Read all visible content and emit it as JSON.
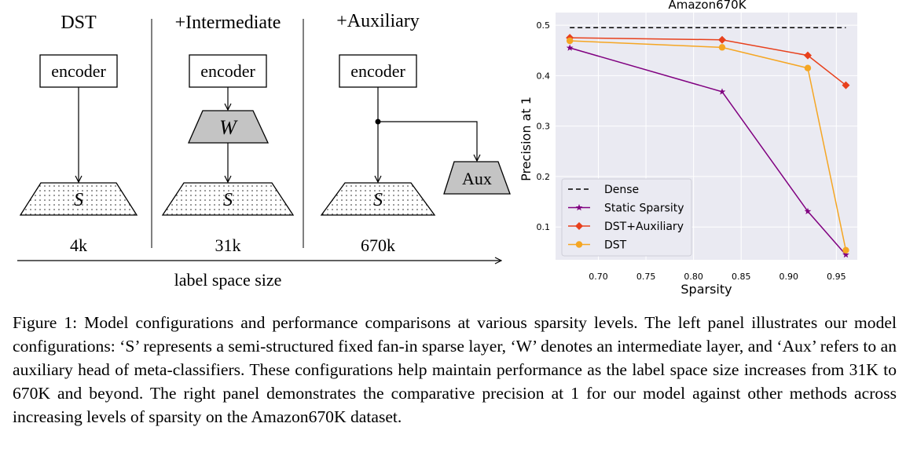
{
  "diagram": {
    "panels": [
      {
        "title": "DST",
        "encoder_label": "encoder",
        "sparse_label": "S",
        "size_label": "4k"
      },
      {
        "title": "+Intermediate",
        "encoder_label": "encoder",
        "intermediate_label": "W",
        "sparse_label": "S",
        "size_label": "31k"
      },
      {
        "title": "+Auxiliary",
        "encoder_label": "encoder",
        "aux_label": "Aux",
        "sparse_label": "S",
        "size_label": "670k"
      }
    ],
    "axis_label": "label space size"
  },
  "chart_data": {
    "type": "line",
    "title": "Amazon670K",
    "xlabel": "Sparsity",
    "ylabel": "Precision at 1",
    "xlim": [
      0.655,
      0.972
    ],
    "ylim": [
      0.035,
      0.525
    ],
    "x_ticks": [
      "0.70",
      "0.75",
      "0.80",
      "0.85",
      "0.90",
      "0.95"
    ],
    "x_tick_values": [
      0.7,
      0.75,
      0.8,
      0.85,
      0.9,
      0.95
    ],
    "y_ticks": [
      "0.1",
      "0.2",
      "0.3",
      "0.4",
      "0.5"
    ],
    "y_tick_values": [
      0.1,
      0.2,
      0.3,
      0.4,
      0.5
    ],
    "legend_position": "lower-left",
    "series": [
      {
        "name": "Dense",
        "color": "#000000",
        "style": "dashed",
        "marker": "none",
        "x": [
          0.67,
          0.96
        ],
        "values": [
          0.495,
          0.495
        ]
      },
      {
        "name": "Static Sparsity",
        "color": "#800080",
        "style": "solid",
        "marker": "star",
        "x": [
          0.67,
          0.83,
          0.92,
          0.96
        ],
        "values": [
          0.455,
          0.368,
          0.131,
          0.045
        ]
      },
      {
        "name": "DST+Auxiliary",
        "color": "#e8401c",
        "style": "solid",
        "marker": "diamond",
        "x": [
          0.67,
          0.83,
          0.92,
          0.96
        ],
        "values": [
          0.475,
          0.471,
          0.44,
          0.381
        ]
      },
      {
        "name": "DST",
        "color": "#f5a623",
        "style": "solid",
        "marker": "circle",
        "x": [
          0.67,
          0.83,
          0.92,
          0.96
        ],
        "values": [
          0.469,
          0.456,
          0.415,
          0.054
        ]
      }
    ]
  },
  "caption": "Figure 1: Model configurations and performance comparisons at various sparsity levels. The left panel illustrates our model configurations: ‘S’ represents a semi-structured fixed fan-in sparse layer, ‘W’ denotes an intermediate layer, and ‘Aux’ refers to an auxiliary head of meta-classifiers. These configurations help maintain performance as the label space size increases from 31K to 670K and beyond. The right panel demonstrates the comparative precision at 1 for our model against other methods across increasing levels of sparsity on the Amazon670K dataset."
}
